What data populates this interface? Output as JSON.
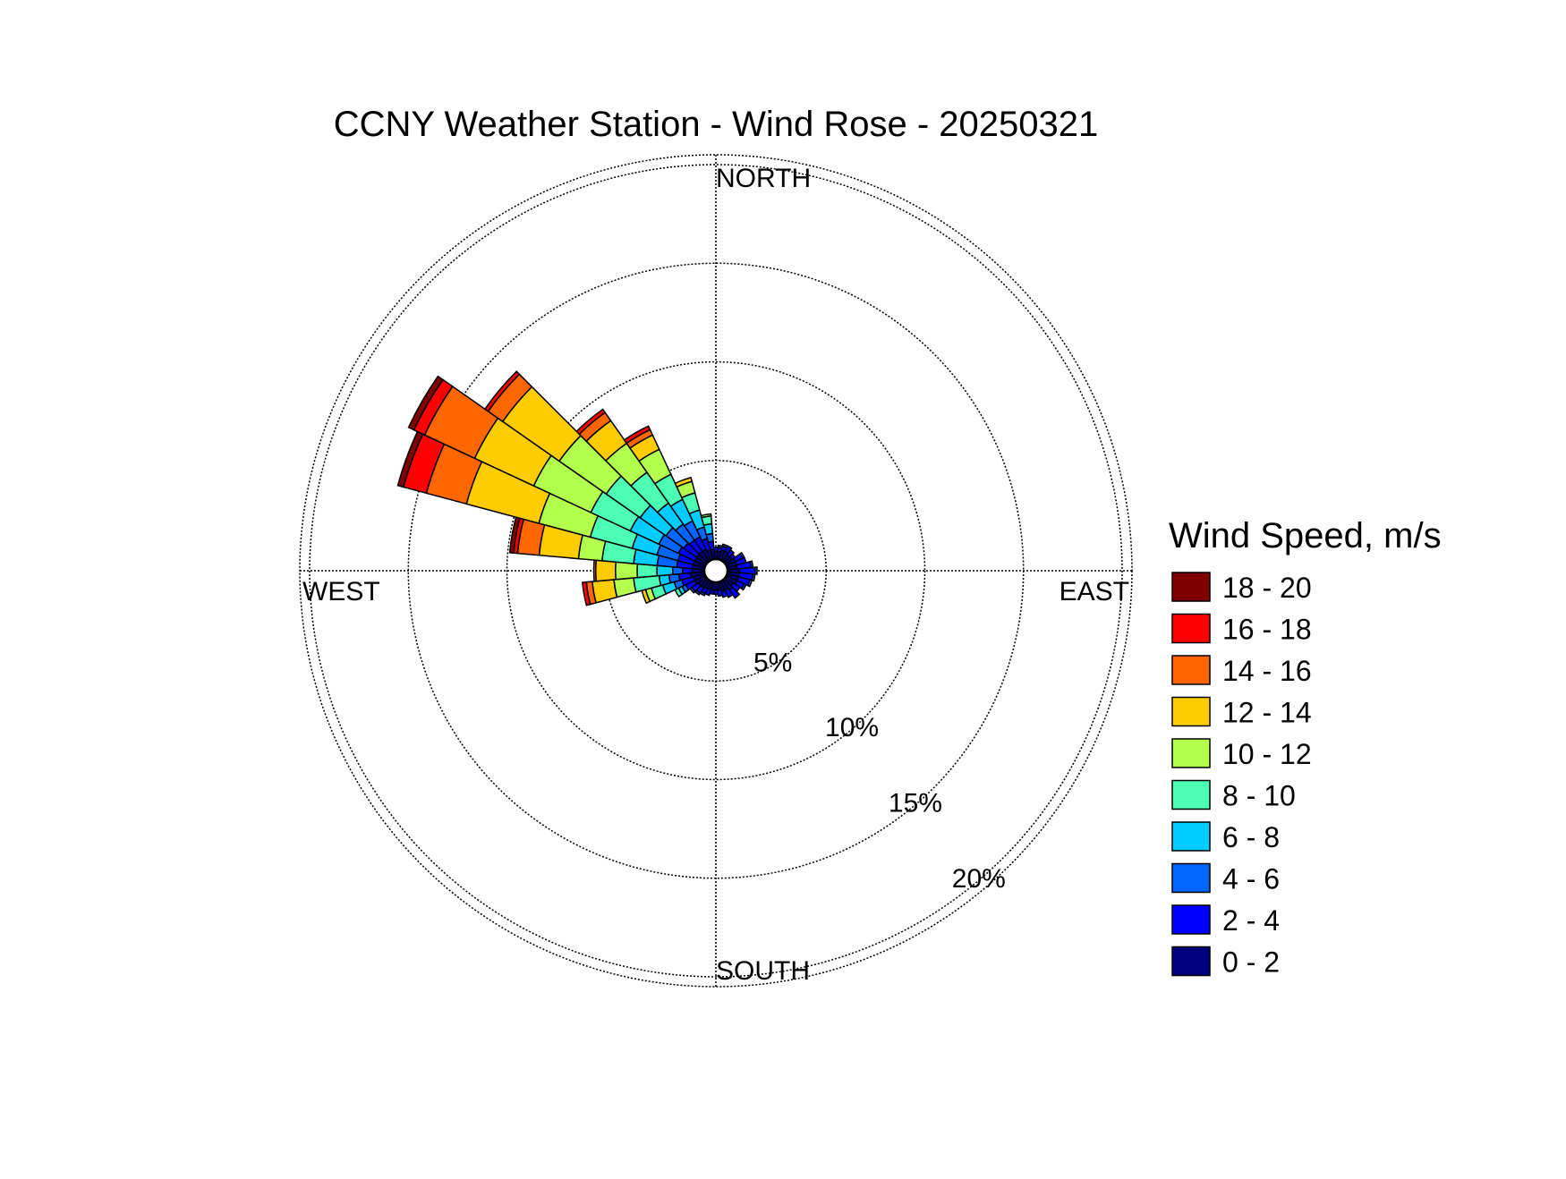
{
  "chart_data": {
    "type": "windrose",
    "title": "CCNY Weather Station - Wind Rose - 20250321",
    "directions": {
      "north": "NORTH",
      "south": "SOUTH",
      "east": "EAST",
      "west": "WEST"
    },
    "radial_ticks": [
      "5%",
      "10%",
      "15%",
      "20%"
    ],
    "radial_values": [
      5,
      10,
      15,
      20
    ],
    "r_max_percent": 20.5,
    "sector_width_deg": 10,
    "calm_circle": true,
    "grid": true,
    "legend": {
      "title": "Wind Speed, m/s",
      "placement": "right"
    },
    "speed_bins": [
      {
        "label": "0 - 2",
        "color": "#00007f"
      },
      {
        "label": "2 - 4",
        "color": "#0000ff"
      },
      {
        "label": "4 - 6",
        "color": "#0066ff"
      },
      {
        "label": "6 - 8",
        "color": "#00ccff"
      },
      {
        "label": "8 - 10",
        "color": "#4dffb3"
      },
      {
        "label": "10 - 12",
        "color": "#b3ff4d"
      },
      {
        "label": "12 - 14",
        "color": "#ffcc00"
      },
      {
        "label": "14 - 16",
        "color": "#ff6600"
      },
      {
        "label": "16 - 18",
        "color": "#ff0000"
      },
      {
        "label": "18 - 20",
        "color": "#800000"
      }
    ],
    "sectors": [
      {
        "direction_deg": 0,
        "cumulative_percent": [
          0.4,
          0.6
        ]
      },
      {
        "direction_deg": 10,
        "cumulative_percent": [
          0.4,
          0.6,
          0.7
        ]
      },
      {
        "direction_deg": 20,
        "cumulative_percent": [
          0.5,
          0.7,
          0.8
        ]
      },
      {
        "direction_deg": 30,
        "cumulative_percent": [
          0.5,
          0.8
        ]
      },
      {
        "direction_deg": 40,
        "cumulative_percent": [
          0.4,
          0.7
        ]
      },
      {
        "direction_deg": 50,
        "cumulative_percent": [
          0.4,
          0.6
        ]
      },
      {
        "direction_deg": 60,
        "cumulative_percent": [
          0.5,
          0.9,
          1.0
        ]
      },
      {
        "direction_deg": 70,
        "cumulative_percent": [
          0.5,
          1.0
        ]
      },
      {
        "direction_deg": 80,
        "cumulative_percent": [
          0.5,
          1.2,
          1.3
        ]
      },
      {
        "direction_deg": 90,
        "cumulative_percent": [
          0.6,
          1.4,
          1.5
        ]
      },
      {
        "direction_deg": 100,
        "cumulative_percent": [
          0.6,
          1.3,
          1.4
        ]
      },
      {
        "direction_deg": 110,
        "cumulative_percent": [
          0.6,
          1.2,
          1.3
        ]
      },
      {
        "direction_deg": 120,
        "cumulative_percent": [
          0.6,
          1.0,
          1.1
        ]
      },
      {
        "direction_deg": 130,
        "cumulative_percent": [
          0.5,
          0.9
        ]
      },
      {
        "direction_deg": 140,
        "cumulative_percent": [
          0.6,
          1.1
        ]
      },
      {
        "direction_deg": 150,
        "cumulative_percent": [
          0.5,
          0.9
        ]
      },
      {
        "direction_deg": 160,
        "cumulative_percent": [
          0.5,
          0.8
        ]
      },
      {
        "direction_deg": 170,
        "cumulative_percent": [
          0.4,
          0.7
        ]
      },
      {
        "direction_deg": 180,
        "cumulative_percent": [
          0.4,
          0.6
        ]
      },
      {
        "direction_deg": 190,
        "cumulative_percent": [
          0.4,
          0.6
        ]
      },
      {
        "direction_deg": 200,
        "cumulative_percent": [
          0.4,
          0.7
        ]
      },
      {
        "direction_deg": 210,
        "cumulative_percent": [
          0.4,
          0.7,
          0.8
        ]
      },
      {
        "direction_deg": 220,
        "cumulative_percent": [
          0.5,
          0.8,
          0.9
        ]
      },
      {
        "direction_deg": 230,
        "cumulative_percent": [
          0.5,
          0.9,
          1.0
        ]
      },
      {
        "direction_deg": 240,
        "cumulative_percent": [
          0.6,
          1.1,
          1.3,
          1.5,
          1.7
        ]
      },
      {
        "direction_deg": 250,
        "cumulative_percent": [
          0.6,
          1.2,
          1.6,
          2.2,
          2.8,
          3.1,
          3.3
        ]
      },
      {
        "direction_deg": 260,
        "cumulative_percent": [
          0.7,
          1.3,
          1.8,
          2.3,
          3.6,
          4.6,
          5.7,
          6.0,
          6.2
        ]
      },
      {
        "direction_deg": 270,
        "cumulative_percent": [
          0.6,
          1.1,
          1.6,
          2.4,
          3.4,
          4.5,
          5.5,
          5.6
        ]
      },
      {
        "direction_deg": 280,
        "cumulative_percent": [
          0.6,
          1.4,
          2.4,
          3.6,
          5.2,
          6.4,
          8.4,
          9.5,
          9.7,
          9.9
        ]
      },
      {
        "direction_deg": 290,
        "cumulative_percent": [
          0.6,
          1.4,
          2.5,
          3.8,
          6.0,
          8.7,
          12.5,
          14.6,
          15.8,
          16.1
        ]
      },
      {
        "direction_deg": 300,
        "cumulative_percent": [
          0.6,
          1.5,
          2.6,
          4.2,
          6.4,
          9.6,
          12.9,
          15.7,
          16.3,
          16.6
        ]
      },
      {
        "direction_deg": 310,
        "cumulative_percent": [
          0.6,
          1.4,
          2.5,
          4.1,
          6.2,
          9.1,
          12.6,
          13.5,
          13.7
        ]
      },
      {
        "direction_deg": 320,
        "cumulative_percent": [
          0.6,
          1.3,
          2.3,
          3.6,
          5.5,
          7.3,
          8.7,
          9.2,
          9.4
        ]
      },
      {
        "direction_deg": 330,
        "cumulative_percent": [
          0.6,
          1.3,
          2.2,
          3.4,
          4.8,
          6.2,
          7.0,
          7.3,
          7.5
        ]
      },
      {
        "direction_deg": 340,
        "cumulative_percent": [
          0.5,
          1.1,
          1.7,
          2.6,
          3.5,
          4.1,
          4.3
        ]
      },
      {
        "direction_deg": 350,
        "cumulative_percent": [
          0.5,
          0.9,
          1.3,
          1.8,
          2.2,
          2.3
        ]
      }
    ]
  }
}
